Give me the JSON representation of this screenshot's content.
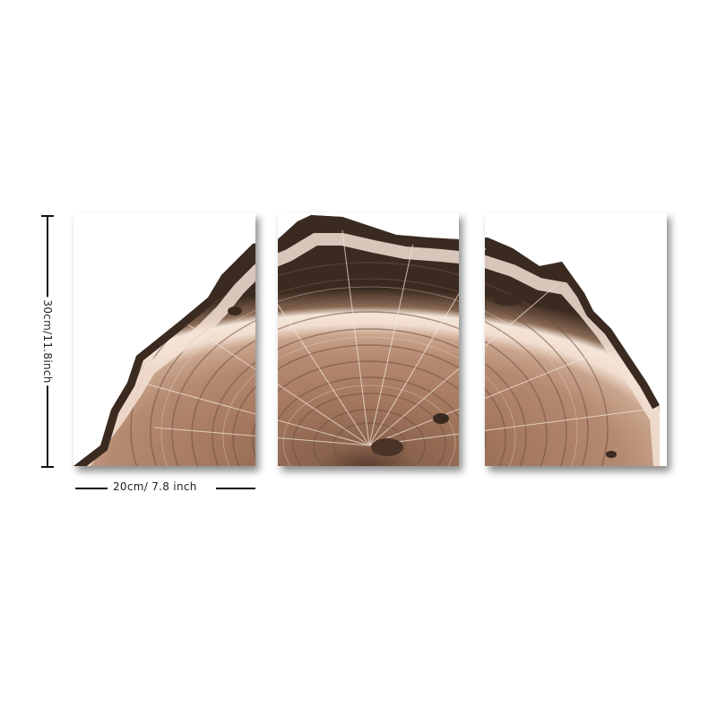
{
  "product": {
    "name_icon": "wood-slice-triptych",
    "colors": {
      "bark_dark": "#3a2a20",
      "bark_mid": "#6b5140",
      "sapwood_light": "#f1ddcf",
      "ring_mid": "#a67a60",
      "ring_dark": "#7a5642",
      "heart": "#8a634c"
    }
  },
  "dimensions": {
    "height_label": "30cm/11.8inch",
    "width_label": "20cm/ 7.8 inch"
  }
}
